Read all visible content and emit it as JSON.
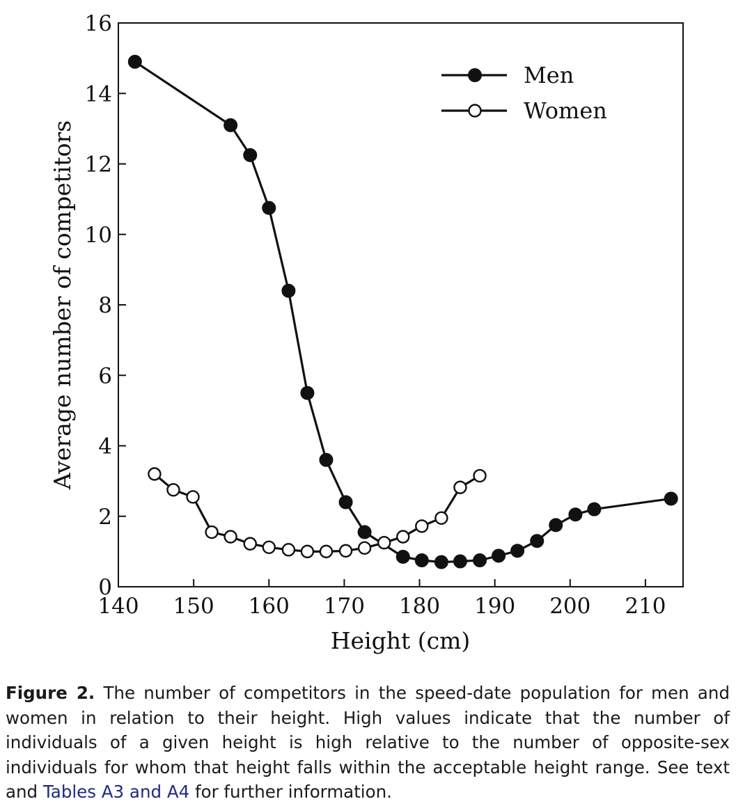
{
  "chart_data": {
    "type": "line",
    "title": "",
    "xlabel": "Height (cm)",
    "ylabel": "Average number of competitors",
    "xlim": [
      140,
      215
    ],
    "ylim": [
      0,
      16
    ],
    "xticks": [
      140,
      150,
      160,
      170,
      180,
      190,
      200,
      210
    ],
    "yticks": [
      0,
      2,
      4,
      6,
      8,
      10,
      12,
      14,
      16
    ],
    "grid": false,
    "legend_position": "top-right",
    "series": [
      {
        "name": "Men",
        "marker": "filled-circle",
        "color": "#111111",
        "x": [
          142.2,
          154.9,
          157.5,
          160.0,
          162.6,
          165.1,
          167.6,
          170.2,
          172.7,
          177.8,
          180.3,
          182.9,
          185.4,
          188.0,
          190.5,
          193.0,
          195.6,
          198.1,
          200.7,
          203.2,
          213.4
        ],
        "y": [
          14.9,
          13.1,
          12.25,
          10.75,
          8.4,
          5.5,
          3.6,
          2.4,
          1.55,
          0.85,
          0.75,
          0.7,
          0.72,
          0.75,
          0.88,
          1.02,
          1.3,
          1.75,
          2.05,
          2.2,
          2.5
        ]
      },
      {
        "name": "Women",
        "marker": "open-circle",
        "color": "#111111",
        "x": [
          144.8,
          147.3,
          149.9,
          152.4,
          154.9,
          157.5,
          160.0,
          162.6,
          165.1,
          167.6,
          170.2,
          172.7,
          175.3,
          177.8,
          180.3,
          182.9,
          185.4,
          188.0
        ],
        "y": [
          3.2,
          2.75,
          2.55,
          1.55,
          1.42,
          1.22,
          1.12,
          1.05,
          1.0,
          1.0,
          1.02,
          1.1,
          1.25,
          1.42,
          1.72,
          1.95,
          2.82,
          3.15
        ]
      }
    ]
  },
  "caption": {
    "label": "Figure 2.",
    "text_before": " The number of competitors in the speed-date population for men and women in relation to their height. High values indicate that the number of individuals of a given height is high relative to the number of opposite-sex individuals for whom that height falls within the acceptable height range. See text and ",
    "link": "Tables A3 and A4",
    "text_after": " for further information."
  }
}
